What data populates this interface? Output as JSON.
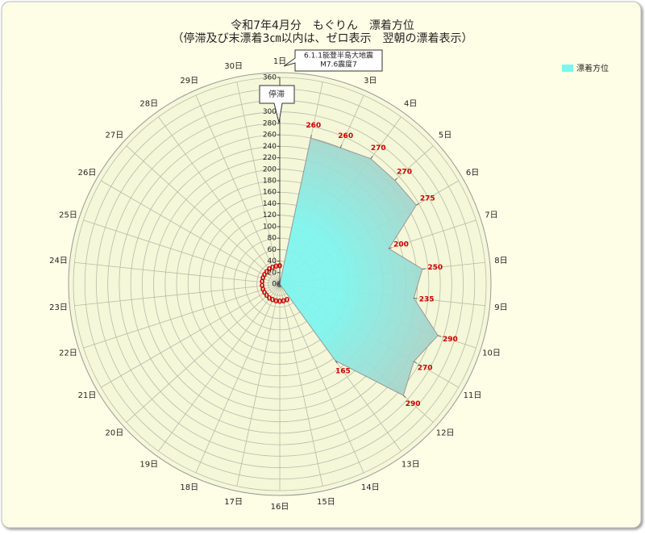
{
  "chart_data": {
    "type": "radar",
    "title": "令和7年4月分　もぐりん　漂着方位",
    "subtitle": "（停滞及び末漂着3㎝以内は、ゼロ表示　翌朝の漂着表示）",
    "categories": [
      "1日",
      "2日",
      "3日",
      "4日",
      "5日",
      "6日",
      "7日",
      "8日",
      "9日",
      "10日",
      "11日",
      "12日",
      "13日",
      "14日",
      "15日",
      "16日",
      "17日",
      "18日",
      "19日",
      "20日",
      "21日",
      "22日",
      "23日",
      "24日",
      "25日",
      "26日",
      "27日",
      "28日",
      "29日",
      "30日"
    ],
    "series": [
      {
        "name": "漂着方位",
        "color": "#7ff5ee",
        "values": [
          0,
          260,
          260,
          270,
          270,
          275,
          200,
          250,
          235,
          290,
          270,
          290,
          165,
          0,
          0,
          0,
          0,
          0,
          0,
          0,
          0,
          0,
          0,
          0,
          0,
          0,
          0,
          0,
          0,
          0
        ]
      }
    ],
    "ylim": [
      0,
      360
    ],
    "yticks": [
      0,
      20,
      40,
      60,
      80,
      100,
      120,
      140,
      160,
      180,
      200,
      220,
      240,
      260,
      280,
      300,
      320,
      340,
      360
    ],
    "grid": true,
    "legend": "top-right",
    "annotations": [
      "6.1.1能登半島大地震",
      "M7.6震度7",
      "停滞"
    ]
  }
}
